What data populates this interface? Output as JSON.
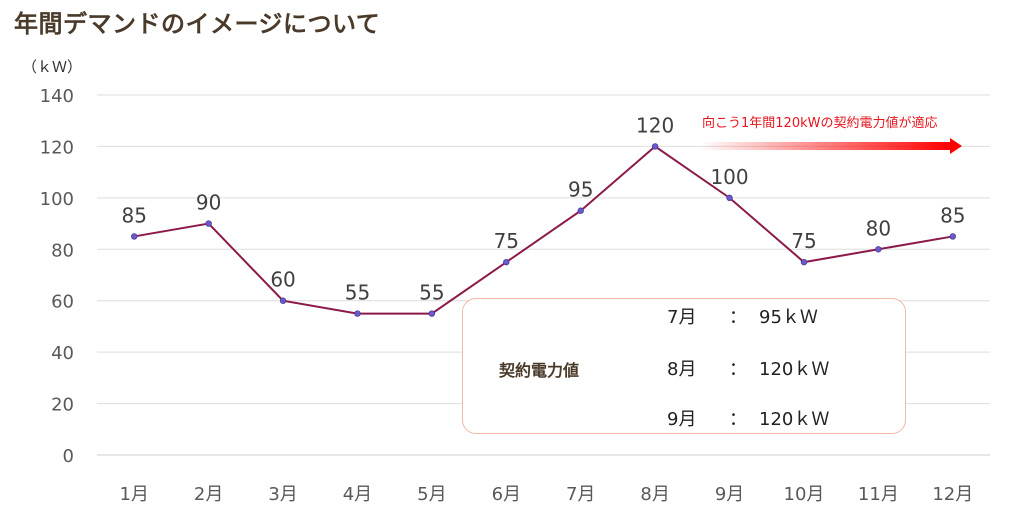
{
  "title": "年間デマンドのイメージについて",
  "unit_label": "（ｋＷ）",
  "annotation": {
    "text": "向こう1年間120kWの契約電力値が適応",
    "color": "#e8141e"
  },
  "contract_box": {
    "label": "契約電力値",
    "rows": [
      {
        "month": "7月",
        "colon": "：",
        "value": "95ｋＷ"
      },
      {
        "month": "8月",
        "colon": "：",
        "value": "120ｋＷ"
      },
      {
        "month": "9月",
        "colon": "：",
        "value": "120ｋＷ"
      }
    ]
  },
  "chart_data": {
    "type": "line",
    "categories": [
      "1月",
      "2月",
      "3月",
      "4月",
      "5月",
      "6月",
      "7月",
      "8月",
      "9月",
      "10月",
      "11月",
      "12月"
    ],
    "values": [
      85,
      90,
      60,
      55,
      55,
      75,
      95,
      120,
      100,
      75,
      80,
      85
    ],
    "ylim": [
      0,
      140
    ],
    "yticks": [
      0,
      20,
      40,
      60,
      80,
      100,
      120,
      140
    ],
    "grid": true,
    "line_color": "#8b1a4a",
    "marker_color": "#6a5acd",
    "data_labels": true
  }
}
